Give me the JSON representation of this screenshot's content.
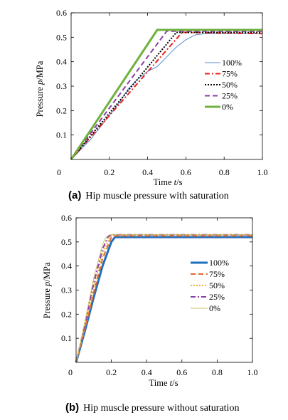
{
  "chart_data": [
    {
      "type": "line",
      "caption_letter": "(a)",
      "caption_text": "Hip muscle pressure with saturation",
      "xlabel_prefix": "Time ",
      "xlabel_var": "t",
      "xlabel_unit": "/s",
      "ylabel_prefix": "Pressure ",
      "ylabel_var": "p",
      "ylabel_unit": "/MPa",
      "xlim": [
        0,
        1.0
      ],
      "ylim": [
        0,
        0.6
      ],
      "xticks": [
        "0",
        "0.2",
        "0.4",
        "0.6",
        "0.8",
        "1.0"
      ],
      "yticks": [
        "0.1",
        "0.2",
        "0.3",
        "0.4",
        "0.5",
        "0.6"
      ],
      "legend_position": "right",
      "series": [
        {
          "name": "100%",
          "color": "#5b8fd0",
          "style": "solid-thin",
          "x": [
            0,
            0.05,
            0.1,
            0.15,
            0.2,
            0.25,
            0.3,
            0.35,
            0.4,
            0.45,
            0.5,
            0.55,
            0.6,
            0.65,
            0.7,
            0.75,
            0.8,
            0.9,
            1.0
          ],
          "y": [
            0,
            0.04,
            0.08,
            0.13,
            0.18,
            0.23,
            0.29,
            0.33,
            0.36,
            0.38,
            0.42,
            0.46,
            0.49,
            0.51,
            0.515,
            0.515,
            0.515,
            0.515,
            0.515
          ]
        },
        {
          "name": "75%",
          "color": "#e8201c",
          "style": "dashdot",
          "x": [
            0,
            0.58,
            1.0
          ],
          "y": [
            0,
            0.52,
            0.515
          ]
        },
        {
          "name": "50%",
          "color": "#000000",
          "style": "dotted",
          "x": [
            0,
            0.55,
            1.0
          ],
          "y": [
            0,
            0.52,
            0.52
          ]
        },
        {
          "name": "25%",
          "color": "#8a3fa8",
          "style": "dashed",
          "x": [
            0,
            0.5,
            1.0
          ],
          "y": [
            0,
            0.525,
            0.525
          ]
        },
        {
          "name": "0%",
          "color": "#6fb23c",
          "style": "solid-thick",
          "x": [
            0,
            0.45,
            1.0
          ],
          "y": [
            0,
            0.53,
            0.53
          ]
        }
      ]
    },
    {
      "type": "line",
      "caption_letter": "(b)",
      "caption_text": "Hip muscle pressure without saturation",
      "xlabel_prefix": "Time ",
      "xlabel_var": "t",
      "xlabel_unit": "/s",
      "ylabel_prefix": "Pressure ",
      "ylabel_var": "p",
      "ylabel_unit": "/MPa",
      "xlim": [
        0,
        1.0
      ],
      "ylim": [
        0,
        0.6
      ],
      "xticks": [
        "0",
        "0.2",
        "0.4",
        "0.6",
        "0.8",
        "1.0"
      ],
      "yticks": [
        "0.1",
        "0.2",
        "0.3",
        "0.4",
        "0.5",
        "0.6"
      ],
      "legend_position": "right",
      "series": [
        {
          "name": "100%",
          "color": "#1f6fbf",
          "style": "solid-thick",
          "x": [
            0,
            0.05,
            0.1,
            0.15,
            0.2,
            0.22,
            0.25,
            1.0
          ],
          "y": [
            0,
            0.13,
            0.27,
            0.4,
            0.5,
            0.52,
            0.52,
            0.52
          ]
        },
        {
          "name": "75%",
          "color": "#e46a2a",
          "style": "dashed",
          "x": [
            0,
            0.05,
            0.1,
            0.15,
            0.2,
            0.22,
            1.0
          ],
          "y": [
            0,
            0.14,
            0.29,
            0.43,
            0.52,
            0.525,
            0.525
          ]
        },
        {
          "name": "50%",
          "color": "#f0b028",
          "style": "dotted",
          "x": [
            0,
            0.05,
            0.1,
            0.15,
            0.19,
            0.21,
            1.0
          ],
          "y": [
            0,
            0.15,
            0.31,
            0.45,
            0.52,
            0.53,
            0.53
          ]
        },
        {
          "name": "25%",
          "color": "#8a3fa8",
          "style": "dashdot",
          "x": [
            0,
            0.05,
            0.1,
            0.15,
            0.18,
            0.2,
            1.0
          ],
          "y": [
            0,
            0.16,
            0.33,
            0.47,
            0.52,
            0.53,
            0.53
          ]
        },
        {
          "name": "0%",
          "color": "#c9c46a",
          "style": "solid-thin",
          "x": [
            0,
            0.05,
            0.1,
            0.15,
            0.17,
            0.19,
            1.0
          ],
          "y": [
            0,
            0.17,
            0.35,
            0.49,
            0.52,
            0.53,
            0.53
          ]
        }
      ]
    }
  ]
}
